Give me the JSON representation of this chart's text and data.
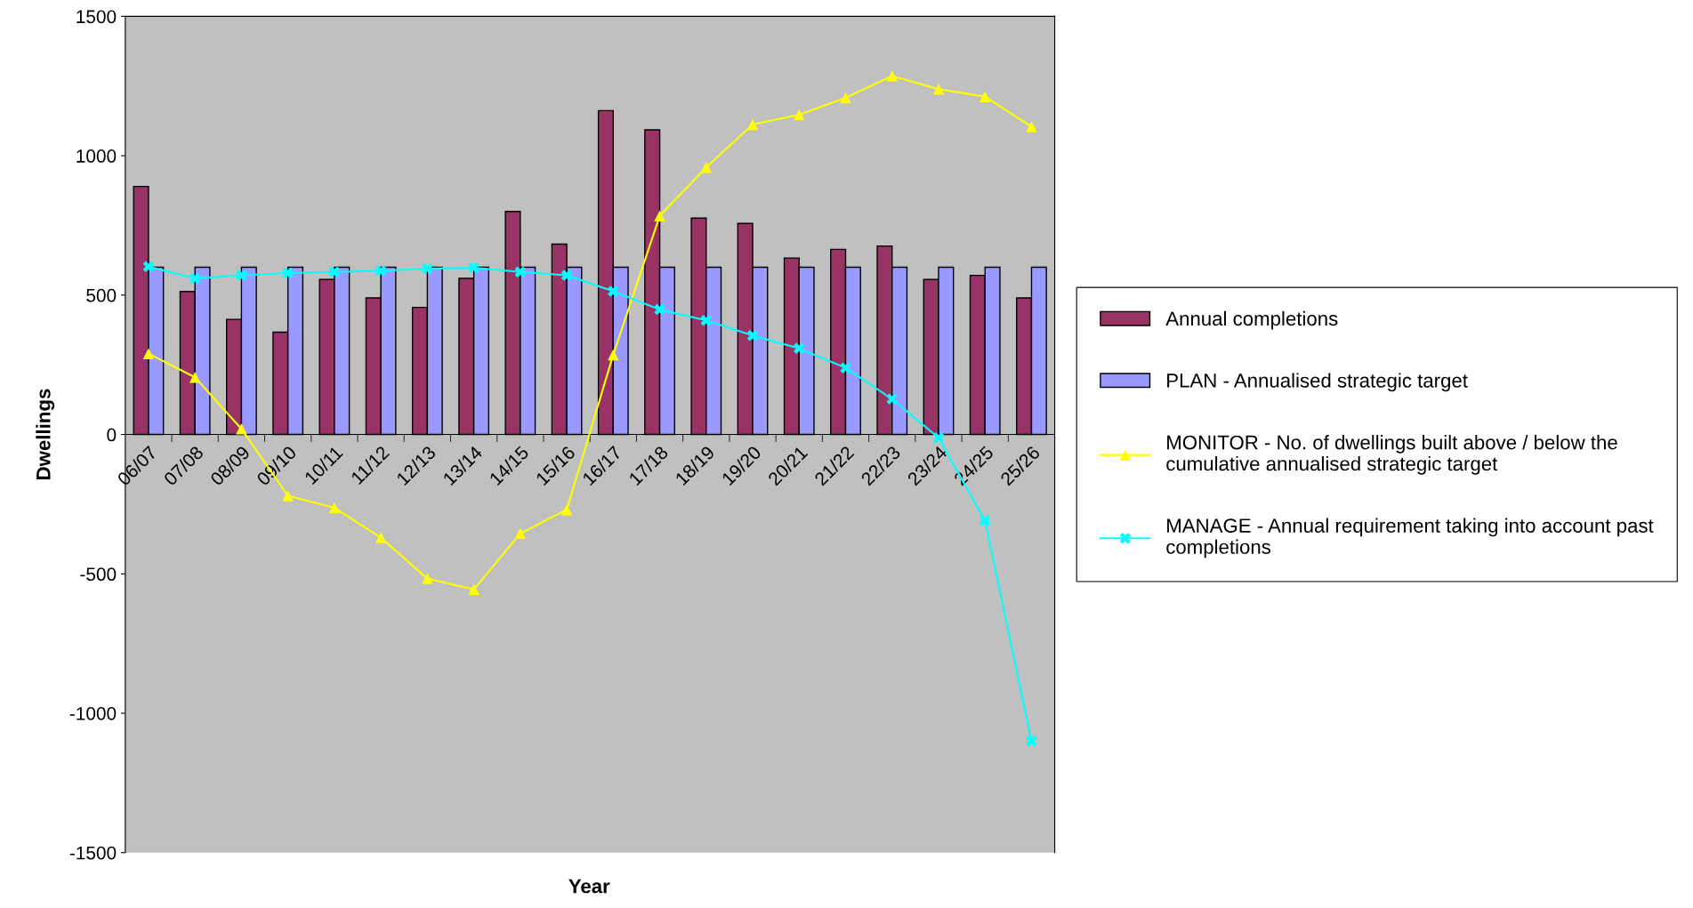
{
  "chart_data": {
    "type": "bar",
    "xlabel": "Year",
    "ylabel": "Dwellings",
    "categories": [
      "06/07",
      "07/08",
      "08/09",
      "09/10",
      "10/11",
      "11/12",
      "12/13",
      "13/14",
      "14/15",
      "15/16",
      "16/17",
      "17/18",
      "18/19",
      "19/20",
      "20/21",
      "21/22",
      "22/23",
      "23/24",
      "24/25",
      "25/26"
    ],
    "series": [
      {
        "name": "Annual completions",
        "color": "#993366",
        "values": [
          890,
          513,
          413,
          367,
          556,
          490,
          456,
          560,
          800,
          683,
          1162,
          1093,
          776,
          757,
          633,
          664,
          676,
          556,
          571,
          490
        ]
      },
      {
        "name": "PLAN - Annualised strategic target",
        "color": "#9999ff",
        "values": [
          600,
          600,
          600,
          600,
          600,
          600,
          600,
          600,
          600,
          600,
          600,
          600,
          600,
          600,
          600,
          600,
          600,
          600,
          600,
          600
        ]
      },
      {
        "name": "MONITOR - No. of dwellings built above / below the cumulative annualised strategic target",
        "type": "line",
        "color": "#ffff00",
        "marker": "triangle",
        "values": [
          290,
          205,
          20,
          -220,
          -263,
          -370,
          -517,
          -556,
          -355,
          -270,
          286,
          784,
          958,
          1112,
          1147,
          1208,
          1286,
          1239,
          1212,
          1104
        ]
      },
      {
        "name": "MANAGE - Annual requirement taking into account past completions",
        "type": "line",
        "color": "#00ffff",
        "marker": "cross",
        "values": [
          602,
          560,
          571,
          579,
          583,
          587,
          595,
          598,
          583,
          571,
          514,
          448,
          409,
          355,
          309,
          239,
          127,
          -12,
          -309,
          -1100
        ]
      }
    ],
    "ylim": [
      -1500,
      1500
    ],
    "yticks": [
      -1500,
      -1000,
      -500,
      0,
      500,
      1000,
      1500
    ],
    "grid": false,
    "legend": "right"
  }
}
